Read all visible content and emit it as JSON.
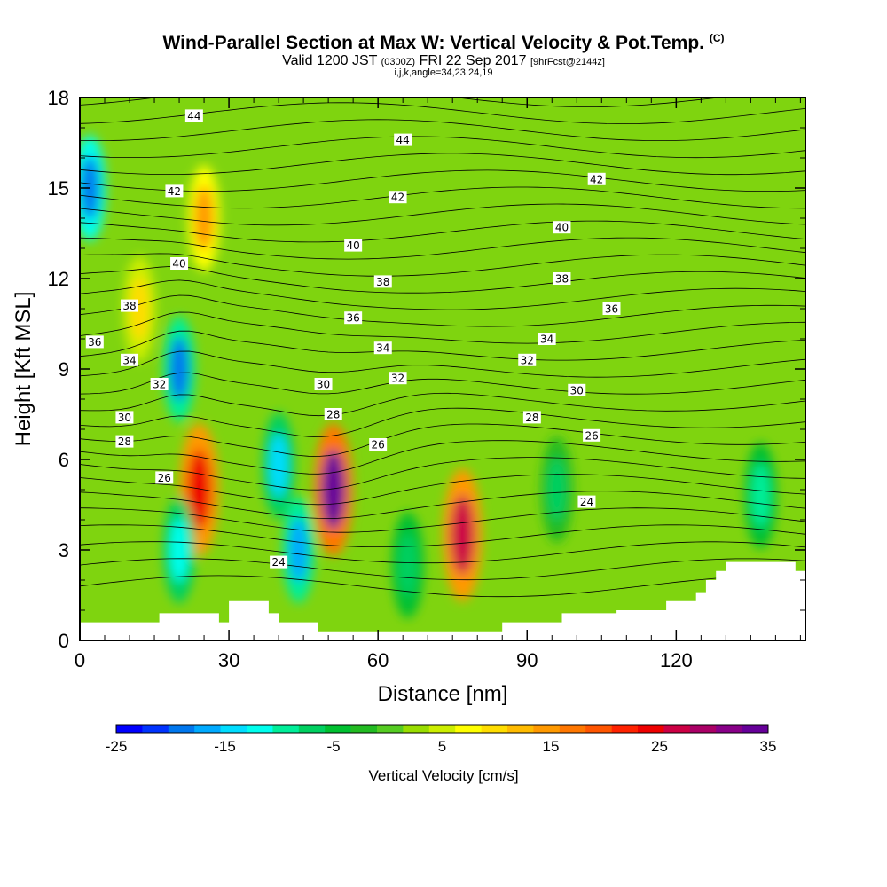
{
  "title": {
    "main": "Wind-Parallel Section at Max W: Vertical Velocity & Pot.Temp.",
    "copyright": "(C)",
    "valid_prefix": "Valid 1200 JST",
    "valid_utc": "(0300Z)",
    "valid_date": "FRI 22 Sep 2017",
    "forecast": "[9hrFcst@2144z]",
    "meta": "i,j,k,angle=34,23,24,19"
  },
  "chart_data": {
    "type": "heatmap",
    "xlabel": "Distance [nm]",
    "ylabel": "Height [Kft MSL]",
    "xlim": [
      0,
      146
    ],
    "ylim": [
      0,
      18
    ],
    "xticks": [
      "0",
      "30",
      "60",
      "90",
      "120"
    ],
    "yticks": [
      "0",
      "3",
      "6",
      "9",
      "12",
      "15",
      "18"
    ],
    "colorbar": {
      "label": "Vertical Velocity [cm/s]",
      "range": [
        -25,
        35
      ],
      "tick_labels": [
        "-25",
        "-15",
        "-5",
        "5",
        "15",
        "25",
        "35"
      ],
      "colors": [
        "#0000ff",
        "#0033ff",
        "#0077ee",
        "#00aaff",
        "#00ddff",
        "#00ffee",
        "#00ee99",
        "#00d060",
        "#00c030",
        "#22bb22",
        "#55cc22",
        "#99dd00",
        "#ccee00",
        "#ffff00",
        "#ffdd00",
        "#ffbb00",
        "#ff9900",
        "#ff7700",
        "#ff5500",
        "#ff2200",
        "#ee0000",
        "#cc0044",
        "#aa0066",
        "#880088",
        "#660099"
      ]
    },
    "contours": {
      "field": "Potential temperature",
      "labels": [
        "24",
        "26",
        "28",
        "30",
        "32",
        "34",
        "36",
        "38",
        "40",
        "42",
        "44"
      ]
    },
    "terrain_profile": [
      [
        0,
        0.6
      ],
      [
        16,
        0.6
      ],
      [
        16,
        0.9
      ],
      [
        28,
        0.9
      ],
      [
        28,
        0.6
      ],
      [
        30,
        0.6
      ],
      [
        30,
        1.3
      ],
      [
        38,
        1.3
      ],
      [
        38,
        0.9
      ],
      [
        40,
        0.9
      ],
      [
        40,
        0.6
      ],
      [
        48,
        0.6
      ],
      [
        48,
        0.3
      ],
      [
        85,
        0.3
      ],
      [
        85,
        0.6
      ],
      [
        97,
        0.6
      ],
      [
        97,
        0.9
      ],
      [
        108,
        0.9
      ],
      [
        108,
        1.0
      ],
      [
        118,
        1.0
      ],
      [
        118,
        1.3
      ],
      [
        124,
        1.3
      ],
      [
        124,
        1.6
      ],
      [
        126,
        1.6
      ],
      [
        126,
        2.0
      ],
      [
        128,
        2.0
      ],
      [
        128,
        2.3
      ],
      [
        130,
        2.3
      ],
      [
        130,
        2.6
      ],
      [
        144,
        2.6
      ],
      [
        144,
        2.3
      ],
      [
        146,
        2.3
      ]
    ],
    "anomalies": [
      {
        "x": 24,
        "y": 5.0,
        "value": 25
      },
      {
        "x": 20,
        "y": 9.0,
        "value": -18
      },
      {
        "x": 51,
        "y": 5.0,
        "value": 33
      },
      {
        "x": 77,
        "y": 3.5,
        "value": 27
      },
      {
        "x": 44,
        "y": 3.0,
        "value": -17
      },
      {
        "x": 40,
        "y": 5.8,
        "value": -14
      },
      {
        "x": 2,
        "y": 15,
        "value": -20
      },
      {
        "x": 25,
        "y": 14,
        "value": 14
      },
      {
        "x": 12,
        "y": 11,
        "value": 10
      },
      {
        "x": 66,
        "y": 2.5,
        "value": -8
      },
      {
        "x": 137,
        "y": 4.8,
        "value": -9
      },
      {
        "x": 96,
        "y": 5,
        "value": -6
      },
      {
        "x": 20,
        "y": 3,
        "value": -12
      }
    ]
  }
}
